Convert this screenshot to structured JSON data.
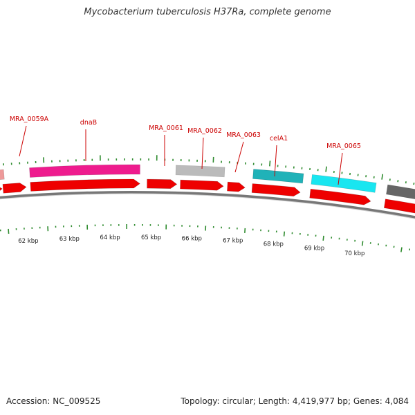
{
  "title": "Mycobacterium tuberculosis H37Ra, complete genome",
  "accession_text": "Accession: NC_009525",
  "summary_text": "Topology: circular; Length: 4,419,977 bp; Genes: 4,084",
  "genome": {
    "accession": "NC_009525",
    "topology": "circular",
    "length_bp": 4419977,
    "gene_count": 4084
  },
  "colors": {
    "backbone": "#777777",
    "cds_red": "#ee0000",
    "label_red": "#cc0000",
    "tick_green": "#2e8b2e",
    "magenta": "#ee1c8e",
    "pink": "#ee9a9a",
    "light_gray": "#bbbbbb",
    "teal": "#20b2b8",
    "cyan": "#19e6f0",
    "dark_gray": "#666666"
  },
  "scale_labels": [
    "62 kbp",
    "63 kbp",
    "64 kbp",
    "65 kbp",
    "66 kbp",
    "67 kbp",
    "68 kbp",
    "69 kbp",
    "70 kbp"
  ],
  "gene_labels": [
    {
      "text": "MRA_0059A",
      "key": "mra_0059a"
    },
    {
      "text": "dnaB",
      "key": "dnab"
    },
    {
      "text": "MRA_0061",
      "key": "mra_0061"
    },
    {
      "text": "MRA_0062",
      "key": "mra_0062"
    },
    {
      "text": "MRA_0063",
      "key": "mra_0063"
    },
    {
      "text": "celA1",
      "key": "cela1"
    },
    {
      "text": "MRA_0065",
      "key": "mra_0065"
    }
  ]
}
